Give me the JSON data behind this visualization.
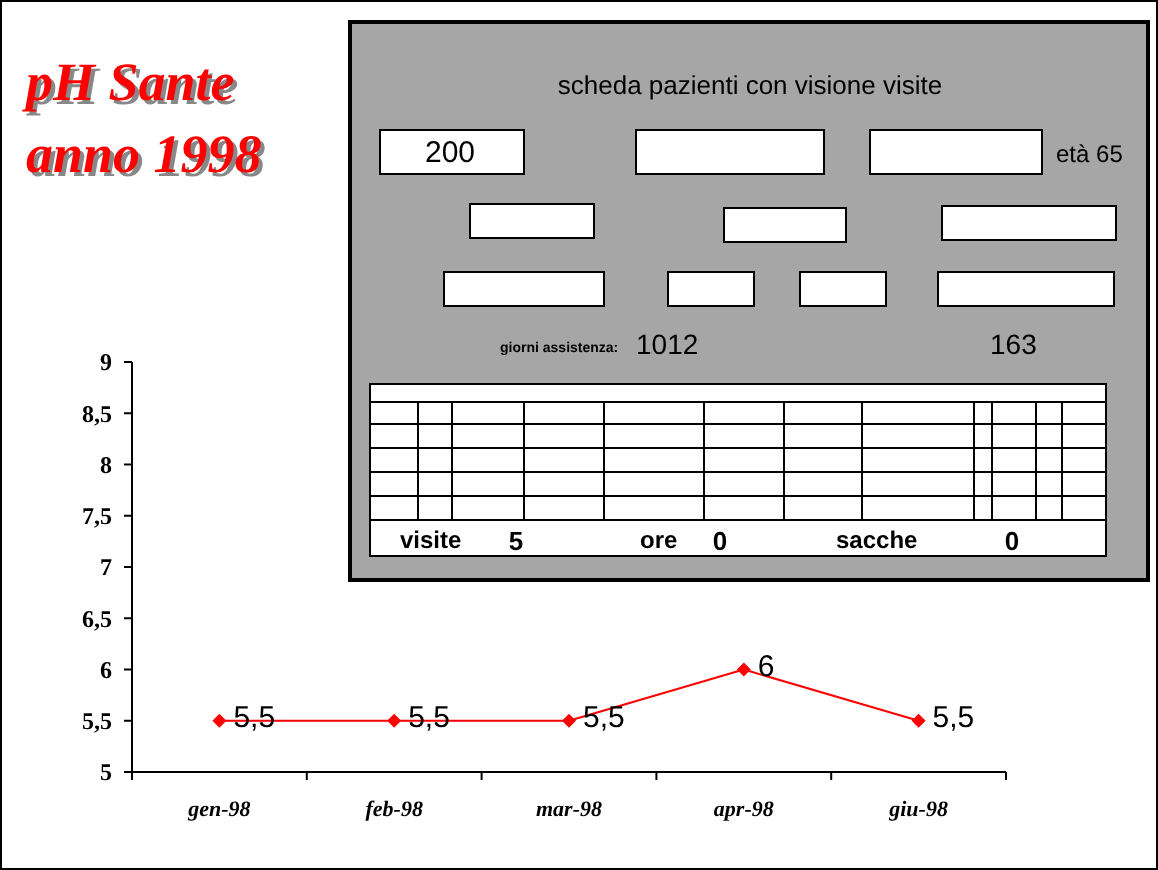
{
  "chart_data": {
    "type": "line",
    "title": "pH  Sante",
    "subtitle": "anno 1998",
    "categories": [
      "gen-98",
      "feb-98",
      "mar-98",
      "apr-98",
      "giu-98"
    ],
    "series": [
      {
        "color": "#ff0000",
        "values": [
          5.5,
          5.5,
          5.5,
          6,
          5.5
        ]
      }
    ],
    "value_labels": [
      "5,5",
      "5,5",
      "5,5",
      "6",
      "5,5"
    ],
    "ylim": [
      5,
      9
    ],
    "yticks": [
      5,
      {
        "value": 5.5,
        "label": "5,5"
      },
      6,
      {
        "value": 6.5,
        "label": "6,5"
      },
      7,
      {
        "value": 7.5,
        "label": "7,5"
      },
      8,
      {
        "value": 8.5,
        "label": "8,5"
      },
      9
    ],
    "marker": "diamond",
    "grid": false,
    "annotations": [
      "scheda pazienti con visione visite",
      "200",
      "età 65",
      "giorni assistenza:",
      "1012",
      "163",
      "visite",
      "5",
      "ore",
      "0",
      "sacche",
      "0"
    ]
  }
}
